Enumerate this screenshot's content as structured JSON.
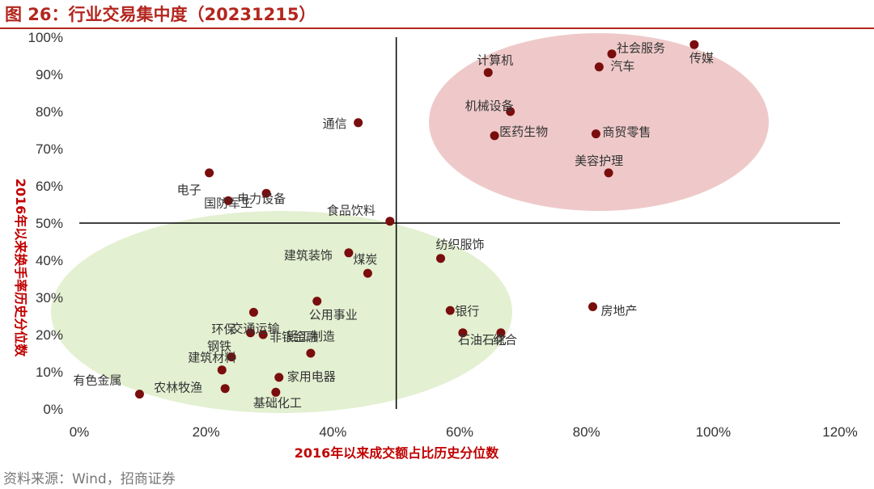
{
  "figure": {
    "title": "图 26：行业交易集中度（20231215）",
    "source": "资料来源：Wind，招商证券"
  },
  "colors": {
    "accent": "#b3261e",
    "point": "#7a0d0d",
    "top_right_ellipse": "#e9b7b7",
    "bottom_left_ellipse": "#dcecc6",
    "axis_label": "#c00000"
  },
  "chart_data": {
    "type": "scatter",
    "xlabel": "2016年以来成交额占比历史分位数",
    "ylabel": "2016年以来换手率历史分位数",
    "xlim": [
      0,
      120
    ],
    "ylim": [
      0,
      100
    ],
    "x_ticks": [
      "0%",
      "20%",
      "40%",
      "60%",
      "80%",
      "100%",
      "120%"
    ],
    "y_ticks": [
      "0%",
      "10%",
      "20%",
      "30%",
      "40%",
      "50%",
      "60%",
      "70%",
      "80%",
      "90%",
      "100%"
    ],
    "reference_lines": {
      "x": 50,
      "y": 50
    },
    "grid": false,
    "points": [
      {
        "label": "传媒",
        "x": 97,
        "y": 98
      },
      {
        "label": "社会服务",
        "x": 84,
        "y": 95.5
      },
      {
        "label": "汽车",
        "x": 82,
        "y": 92
      },
      {
        "label": "计算机",
        "x": 64.5,
        "y": 90.5
      },
      {
        "label": "机械设备",
        "x": 68,
        "y": 80
      },
      {
        "label": "医药生物",
        "x": 65.5,
        "y": 73.5
      },
      {
        "label": "商贸零售",
        "x": 81.5,
        "y": 74
      },
      {
        "label": "美容护理",
        "x": 83.5,
        "y": 63.5
      },
      {
        "label": "通信",
        "x": 44,
        "y": 77
      },
      {
        "label": "电子",
        "x": 20.5,
        "y": 63.5
      },
      {
        "label": "国防军工",
        "x": 23.5,
        "y": 56
      },
      {
        "label": "电力设备",
        "x": 29.5,
        "y": 58
      },
      {
        "label": "食品饮料",
        "x": 49,
        "y": 50.5
      },
      {
        "label": "纺织服饰",
        "x": 57,
        "y": 40.5
      },
      {
        "label": "建筑装饰",
        "x": 42.5,
        "y": 42
      },
      {
        "label": "煤炭",
        "x": 45.5,
        "y": 36.5
      },
      {
        "label": "公用事业",
        "x": 37.5,
        "y": 29
      },
      {
        "label": "银行",
        "x": 58.5,
        "y": 26.5
      },
      {
        "label": "房地产",
        "x": 81,
        "y": 27.5
      },
      {
        "label": "石油石化",
        "x": 60.5,
        "y": 20.5
      },
      {
        "label": "综合",
        "x": 66.5,
        "y": 20.5
      },
      {
        "label": "环保",
        "x": 27.5,
        "y": 26
      },
      {
        "label": "交通运输",
        "x": 27,
        "y": 20.5
      },
      {
        "label": "非银金融",
        "x": 29,
        "y": 20
      },
      {
        "label": "轻工制造",
        "x": 36.5,
        "y": 15
      },
      {
        "label": "钢铁",
        "x": 24,
        "y": 14
      },
      {
        "label": "建筑材料",
        "x": 22.5,
        "y": 10.5
      },
      {
        "label": "家用电器",
        "x": 31.5,
        "y": 8.5
      },
      {
        "label": "有色金属",
        "x": 9.5,
        "y": 4
      },
      {
        "label": "农林牧渔",
        "x": 23,
        "y": 5.5
      },
      {
        "label": "基础化工",
        "x": 31,
        "y": 4.5
      }
    ]
  }
}
